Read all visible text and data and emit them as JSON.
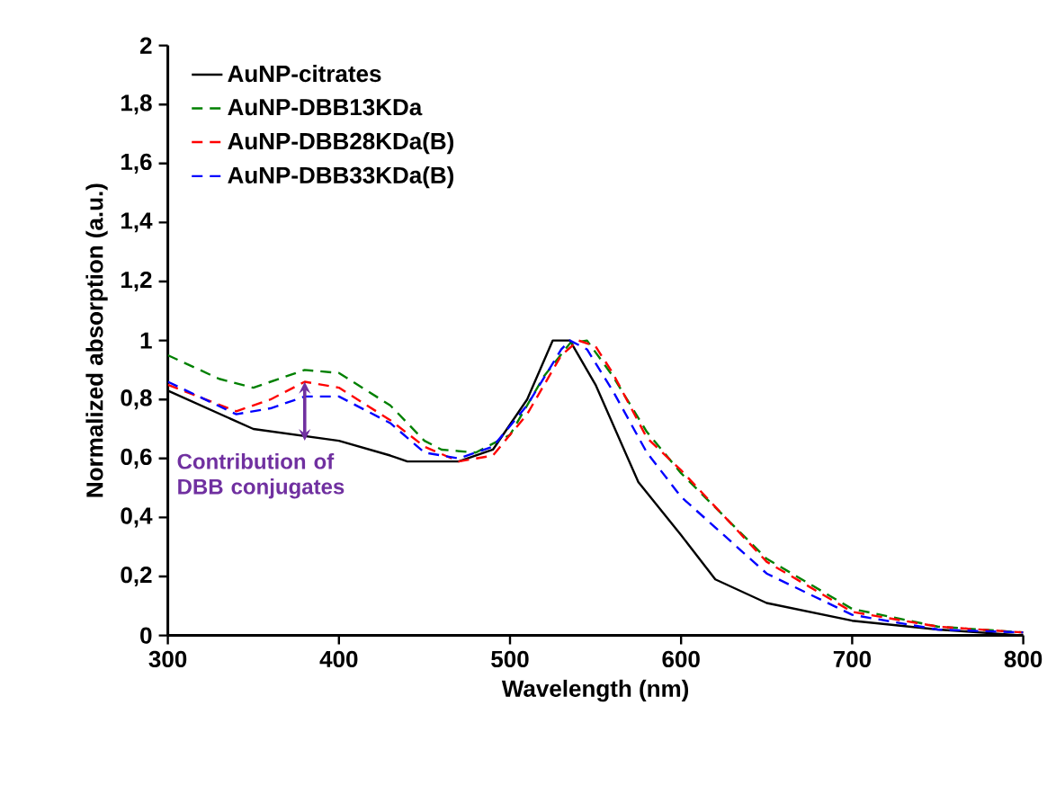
{
  "chart_data": {
    "type": "line",
    "xlabel": "Wavelength (nm)",
    "ylabel": "Normalized absorption (a.u.)",
    "xlim": [
      300,
      800
    ],
    "xticks": [
      300,
      400,
      500,
      600,
      700,
      800
    ],
    "ylim": [
      0,
      2
    ],
    "yticks": [
      0,
      {
        "value": 0.2,
        "label": "0,2"
      },
      {
        "value": 0.4,
        "label": "0,4"
      },
      {
        "value": 0.6,
        "label": "0,6"
      },
      {
        "value": 0.8,
        "label": "0,8"
      },
      1,
      {
        "value": 1.2,
        "label": "1,2"
      },
      {
        "value": 1.4,
        "label": "1,4"
      },
      {
        "value": 1.6,
        "label": "1,6"
      },
      {
        "value": 1.8,
        "label": "1,8"
      },
      2
    ],
    "grid": false,
    "legend": "top left",
    "annotations": [
      {
        "text": "Contribution of DBB conjugates",
        "x": 380,
        "y": 0.86
      }
    ],
    "series": [
      {
        "name": "AuNP-citrates",
        "color": "#000000",
        "line_style": "solid",
        "x": [
          300,
          350,
          400,
          430,
          440,
          470,
          490,
          510,
          525,
          535,
          550,
          575,
          600,
          620,
          650,
          700,
          750,
          800
        ],
        "values": [
          0.83,
          0.7,
          0.66,
          0.61,
          0.59,
          0.59,
          0.63,
          0.8,
          1.0,
          1.0,
          0.85,
          0.52,
          0.34,
          0.19,
          0.11,
          0.05,
          0.02,
          0.0
        ]
      },
      {
        "name": "AuNP-DBB13KDa",
        "color": "#008000",
        "line_style": "dashed",
        "x": [
          300,
          330,
          350,
          380,
          400,
          430,
          450,
          460,
          480,
          500,
          520,
          535,
          545,
          560,
          580,
          600,
          650,
          700,
          750,
          800
        ],
        "values": [
          0.95,
          0.87,
          0.84,
          0.9,
          0.89,
          0.78,
          0.66,
          0.63,
          0.62,
          0.68,
          0.88,
          0.99,
          1.0,
          0.88,
          0.69,
          0.55,
          0.26,
          0.09,
          0.03,
          0.01
        ]
      },
      {
        "name": "AuNP-DBB28KDa(B)",
        "color": "#ff0000",
        "line_style": "dashed",
        "x": [
          300,
          340,
          360,
          380,
          400,
          430,
          450,
          470,
          490,
          510,
          530,
          540,
          550,
          560,
          580,
          600,
          650,
          700,
          750,
          800
        ],
        "values": [
          0.85,
          0.76,
          0.8,
          0.86,
          0.84,
          0.73,
          0.64,
          0.59,
          0.61,
          0.75,
          0.95,
          1.0,
          0.98,
          0.89,
          0.67,
          0.56,
          0.25,
          0.08,
          0.03,
          0.01
        ]
      },
      {
        "name": "AuNP-DBB33KDa(B)",
        "color": "#0000ff",
        "line_style": "dashed",
        "x": [
          300,
          340,
          360,
          380,
          400,
          430,
          450,
          470,
          490,
          510,
          530,
          535,
          545,
          560,
          580,
          600,
          650,
          700,
          750,
          800
        ],
        "values": [
          0.86,
          0.75,
          0.77,
          0.81,
          0.81,
          0.72,
          0.62,
          0.6,
          0.64,
          0.78,
          0.97,
          1.0,
          0.97,
          0.83,
          0.62,
          0.47,
          0.21,
          0.07,
          0.02,
          0.01
        ]
      }
    ]
  }
}
